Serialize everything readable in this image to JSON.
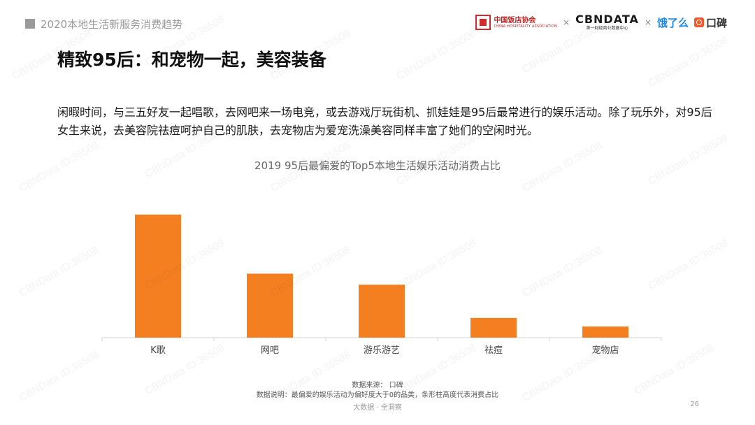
{
  "header": {
    "section_title": "2020本地生活新服务消费趋势",
    "logos": {
      "assoc_name": "中国饭店协会",
      "assoc_sub": "CHINA HOSPITALITY ASSOCIATION",
      "times1": "×",
      "cbn_main": "CBNDATA",
      "cbn_sub": "第一财经商业数据中心",
      "times2": "×",
      "eleme": "饿了么",
      "koubei": "口碑"
    }
  },
  "title": "精致95后：和宠物一起，美容装备",
  "paragraph": "闲暇时间，与三五好友一起唱歌，去网吧来一场电竞，或去游戏厅玩街机、抓娃娃是95后最常进行的娱乐活动。除了玩乐外，对95后女生来说，去美容院祛痘呵护自己的肌肤，去宠物店为爱宠洗澡美容同样丰富了她们的空闲时光。",
  "chart_data": {
    "type": "bar",
    "title": "2019 95后最偏爱的Top5本地生活娱乐活动消费占比",
    "categories": [
      "K歌",
      "网吧",
      "游乐游艺",
      "祛痘",
      "宠物店"
    ],
    "values": [
      100,
      52,
      43,
      16,
      9
    ],
    "xlabel": "",
    "ylabel": "",
    "ylim": [
      0,
      100
    ],
    "grid": false,
    "legend": "none",
    "bar_color": "#f47f20"
  },
  "footer": {
    "source": "数据来源： 口碑",
    "note": "数据说明：最偏爱的娱乐活动为偏好度大于0的品类，条形柱高度代表消费占比",
    "tagline": "大数据 · 全洞察",
    "page_number": "26"
  },
  "watermark": "CBNData ID:36508"
}
